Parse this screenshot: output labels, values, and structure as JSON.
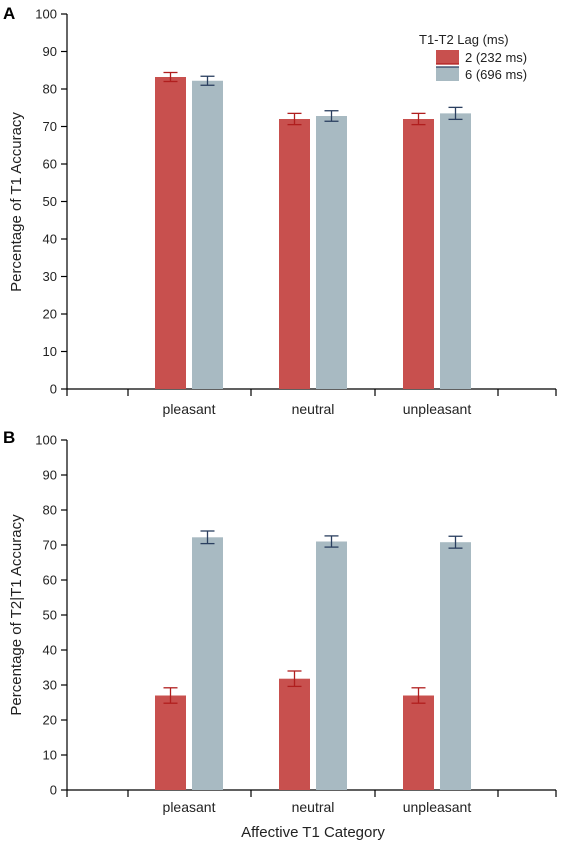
{
  "chart_data": [
    {
      "type": "bar",
      "panel_label": "A",
      "categories": [
        "pleasant",
        "neutral",
        "unpleasant"
      ],
      "series": [
        {
          "name": "2 (232 ms)",
          "values": [
            83.2,
            72.0,
            72.0
          ],
          "errors": [
            1.2,
            1.5,
            1.5
          ],
          "color": "#c8504e",
          "error_color": "#b01e1e"
        },
        {
          "name": "6 (696 ms)",
          "values": [
            82.2,
            72.8,
            73.5
          ],
          "errors": [
            1.2,
            1.4,
            1.6
          ],
          "color": "#a8bac2",
          "error_color": "#2a3f5f"
        }
      ],
      "ylabel": "Percentage of T1 Accuracy",
      "xlabel": "",
      "ylim": [
        0,
        100
      ],
      "yticks": [
        0,
        10,
        20,
        30,
        40,
        50,
        60,
        70,
        80,
        90,
        100
      ],
      "legend": {
        "title": "T1-T2 Lag (ms)",
        "placement": "top-right"
      }
    },
    {
      "type": "bar",
      "panel_label": "B",
      "categories": [
        "pleasant",
        "neutral",
        "unpleasant"
      ],
      "series": [
        {
          "name": "2 (232 ms)",
          "values": [
            27.0,
            31.8,
            27.0
          ],
          "errors": [
            2.2,
            2.2,
            2.2
          ],
          "color": "#c8504e",
          "error_color": "#b01e1e"
        },
        {
          "name": "6 (696 ms)",
          "values": [
            72.2,
            71.0,
            70.8
          ],
          "errors": [
            1.8,
            1.6,
            1.7
          ],
          "color": "#a8bac2",
          "error_color": "#2a3f5f"
        }
      ],
      "ylabel": "Percentage of T2|T1 Accuracy",
      "xlabel": "Affective T1 Category",
      "ylim": [
        0,
        100
      ],
      "yticks": [
        0,
        10,
        20,
        30,
        40,
        50,
        60,
        70,
        80,
        90,
        100
      ]
    }
  ]
}
